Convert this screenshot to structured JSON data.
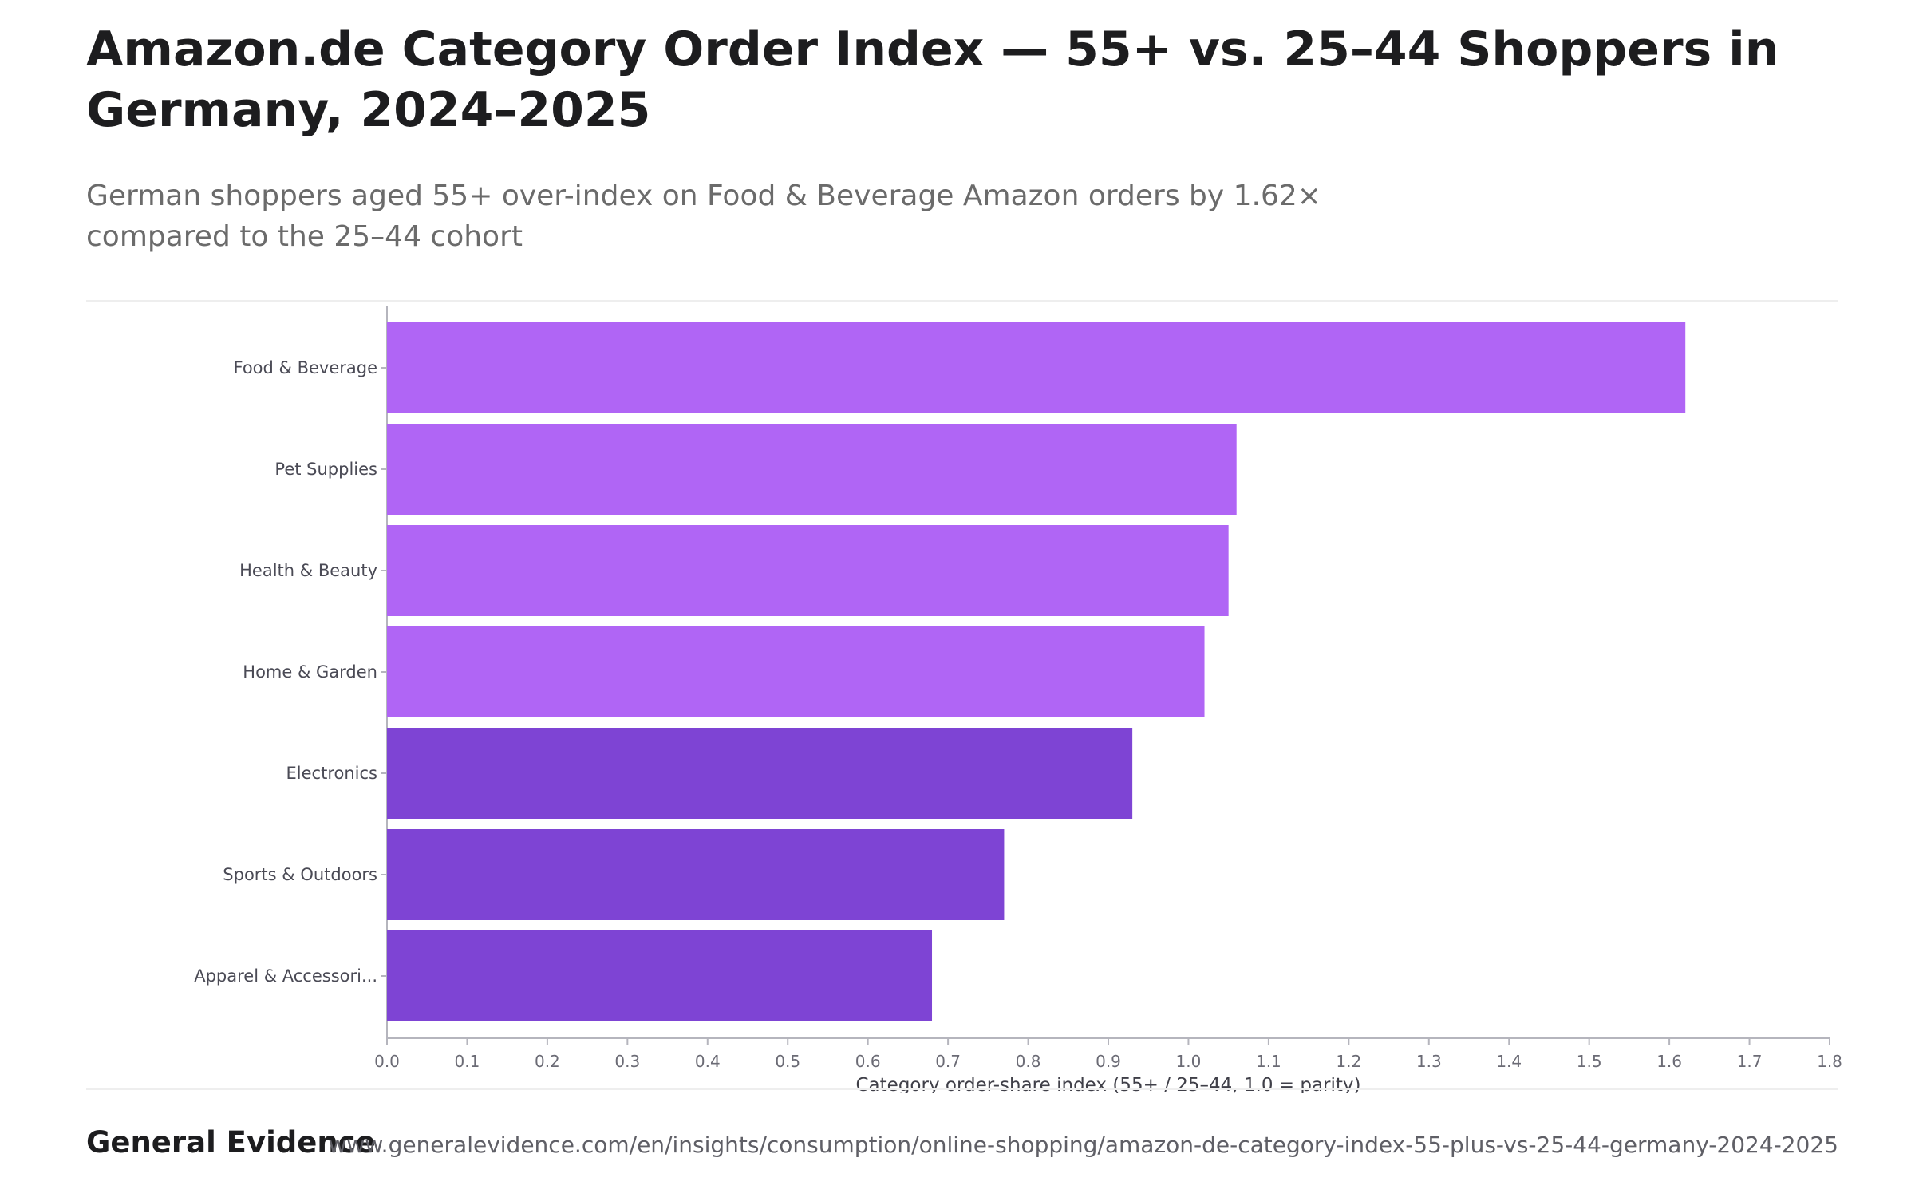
{
  "header": {
    "title": "Amazon.de Category Order Index — 55+ vs. 25–44 Shoppers in Germany, 2024–2025",
    "subtitle": "German shoppers aged 55+ over-index on Food & Beverage Amazon orders by 1.62× compared to the 25–44 cohort"
  },
  "footer": {
    "brand": "General Evidence",
    "source_url": "www.generalevidence.com/en/insights/consumption/online-shopping/amazon-de-category-index-55-plus-vs-25-44-germany-2024-2025"
  },
  "colors": {
    "over_parity": "#b065f5",
    "under_parity": "#7e44d4",
    "axis": "#b5b5bd",
    "tick_text": "#6b6b75",
    "label_text": "#4a4a55"
  },
  "chart_data": {
    "type": "bar",
    "orientation": "horizontal",
    "title": "",
    "categories": [
      "Food & Beverage",
      "Pet Supplies",
      "Health & Beauty",
      "Home & Garden",
      "Electronics",
      "Sports & Outdoors",
      "Apparel & Accessori..."
    ],
    "values": [
      1.62,
      1.06,
      1.05,
      1.02,
      0.93,
      0.77,
      0.68
    ],
    "xlabel": "Category order-share index (55+ / 25–44, 1.0 = parity)",
    "ylabel": "",
    "xlim": [
      0,
      1.8
    ],
    "xticks": [
      "0.0",
      "0.1",
      "0.2",
      "0.3",
      "0.4",
      "0.5",
      "0.6",
      "0.7",
      "0.8",
      "0.9",
      "1.0",
      "1.1",
      "1.2",
      "1.3",
      "1.4",
      "1.5",
      "1.6",
      "1.7",
      "1.8"
    ],
    "parity": 1.0,
    "grid": false,
    "legend": "none"
  }
}
